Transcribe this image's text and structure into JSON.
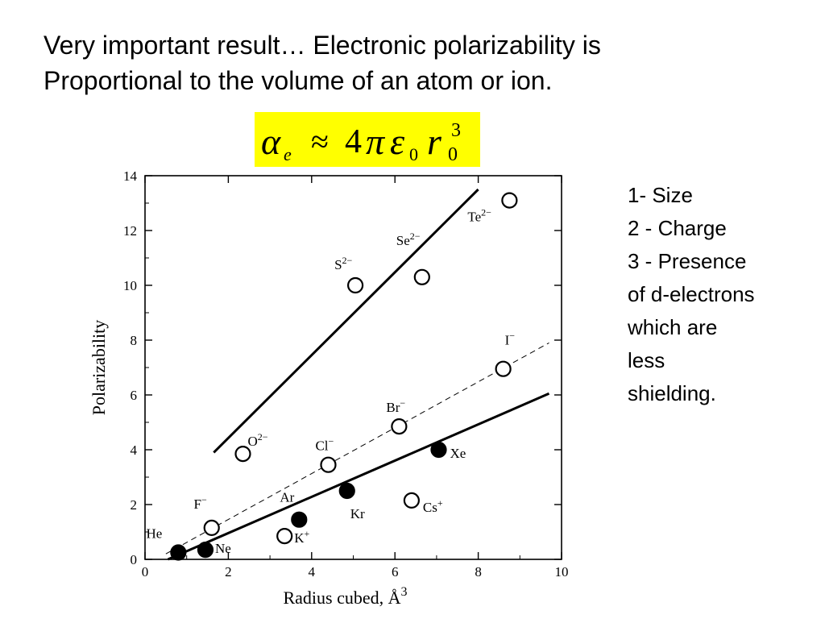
{
  "slide": {
    "title_line1": "Very important result… Electronic polarizability is",
    "title_line2": "Proportional to the volume of an atom or ion.",
    "formula": {
      "alpha": "α",
      "alpha_sub": "e",
      "approx": "≈",
      "four": "4",
      "pi": "π",
      "epsilon": "ε",
      "epsilon_sub": "0",
      "r": "r",
      "r_sub": "0",
      "r_sup": "3"
    },
    "notes": [
      "1- Size",
      "2 - Charge",
      "3 - Presence",
      "of d-electrons",
      "which are",
      "less",
      "shielding."
    ],
    "colors": {
      "formula_background": "#ffff00"
    }
  },
  "chart_data": {
    "type": "scatter",
    "xlabel": "Radius cubed, Å",
    "xlabel_sup": "3",
    "ylabel": "Polarizability",
    "xlim": [
      0,
      10
    ],
    "ylim": [
      0,
      14
    ],
    "xticks": [
      0,
      2,
      4,
      6,
      8,
      10
    ],
    "yticks": [
      0,
      2,
      4,
      6,
      8,
      10,
      12,
      14
    ],
    "grid": false,
    "series": [
      {
        "marker": "open-circle",
        "points": [
          {
            "label": "F",
            "sup": "−",
            "x": 1.6,
            "y": 1.15
          },
          {
            "label": "O",
            "sup": "2−",
            "x": 2.35,
            "y": 3.85
          },
          {
            "label": "K",
            "sup": "+",
            "x": 3.35,
            "y": 0.85
          },
          {
            "label": "Cl",
            "sup": "−",
            "x": 4.4,
            "y": 3.45
          },
          {
            "label": "S",
            "sup": "2−",
            "x": 5.05,
            "y": 10.0
          },
          {
            "label": "Br",
            "sup": "−",
            "x": 6.1,
            "y": 4.85
          },
          {
            "label": "Cs",
            "sup": "+",
            "x": 6.4,
            "y": 2.15
          },
          {
            "label": "Se",
            "sup": "2−",
            "x": 6.65,
            "y": 10.3
          },
          {
            "label": "I",
            "sup": "−",
            "x": 8.6,
            "y": 6.95
          },
          {
            "label": "Te",
            "sup": "2−",
            "x": 8.75,
            "y": 13.1
          }
        ]
      },
      {
        "marker": "filled-circle",
        "points": [
          {
            "label": "He",
            "sup": "",
            "x": 0.8,
            "y": 0.25
          },
          {
            "label": "Ne",
            "sup": "",
            "x": 1.45,
            "y": 0.35
          },
          {
            "label": "Ar",
            "sup": "",
            "x": 3.7,
            "y": 1.45
          },
          {
            "label": "Kr",
            "sup": "",
            "x": 4.85,
            "y": 2.5
          },
          {
            "label": "Xe",
            "sup": "",
            "x": 7.05,
            "y": 4.0
          }
        ]
      }
    ],
    "lines": [
      {
        "style": "solid-thick",
        "x": [
          1.65,
          8.0
        ],
        "y": [
          3.9,
          13.5
        ]
      },
      {
        "style": "dashed",
        "x": [
          0.5,
          9.7
        ],
        "y": [
          0.2,
          7.9
        ]
      },
      {
        "style": "solid",
        "x": [
          0.55,
          9.7
        ],
        "y": [
          0.0,
          6.05
        ]
      }
    ]
  }
}
